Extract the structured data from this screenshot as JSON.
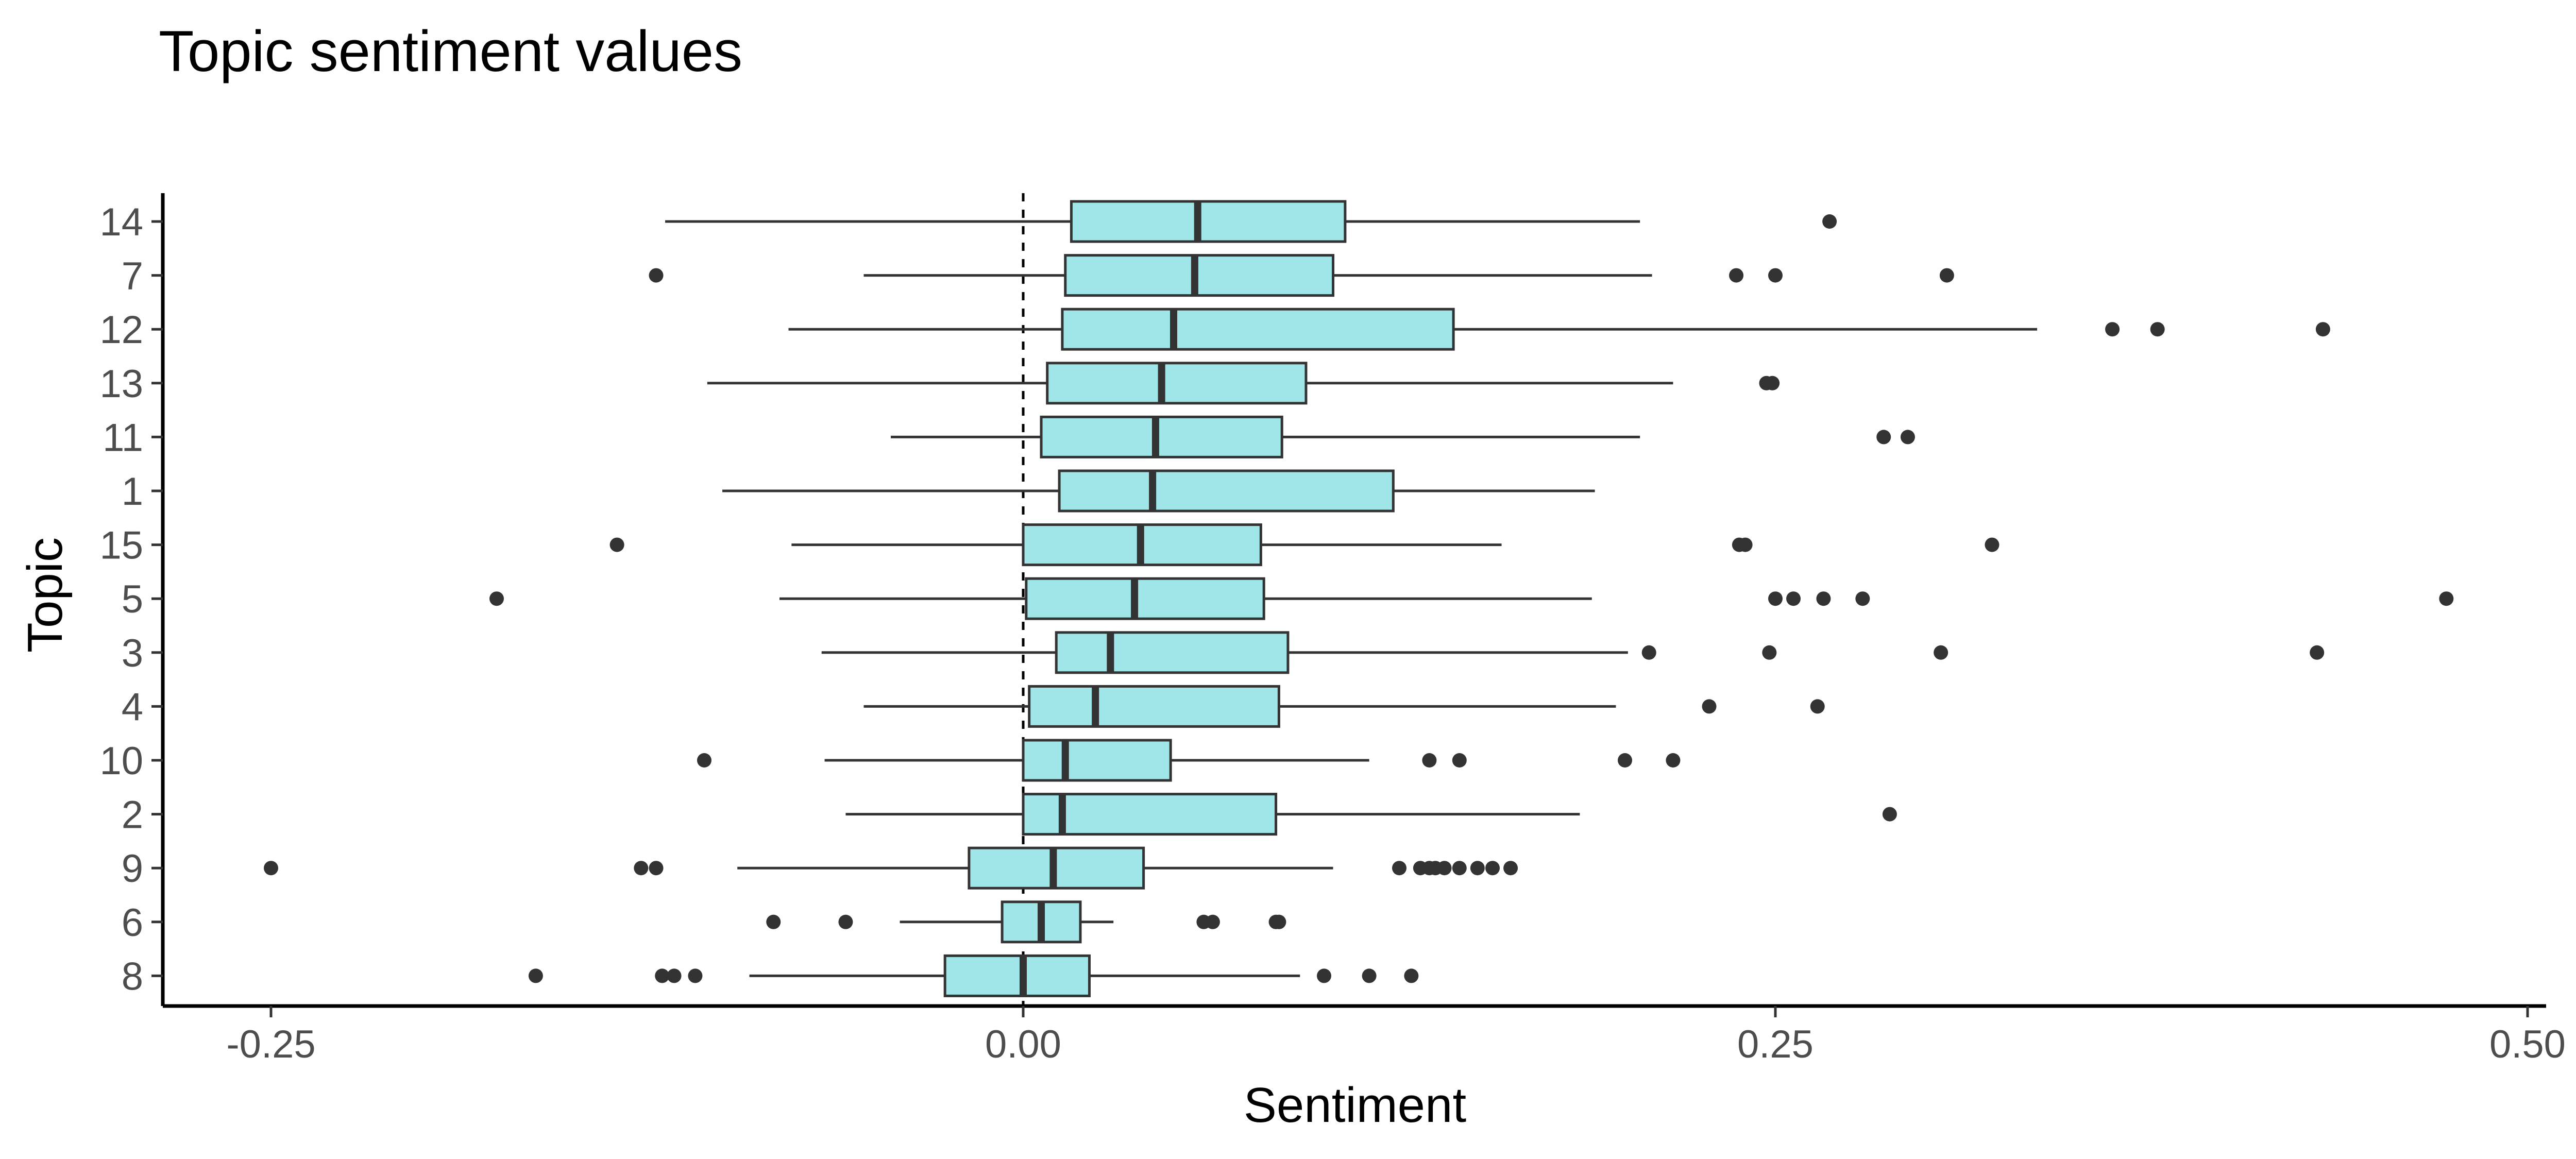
{
  "chart_data": {
    "type": "boxplot",
    "orientation": "horizontal",
    "title": "Topic sentiment values",
    "xlabel": "Sentiment",
    "ylabel": "Topic",
    "xlim": [
      -0.29,
      0.505
    ],
    "x_ticks": [
      -0.25,
      0.0,
      0.25,
      0.5
    ],
    "x_tick_labels": [
      "-0.25",
      "0.00",
      "0.25",
      "0.50"
    ],
    "reference_line": {
      "x": 0.0,
      "style": "dashed"
    },
    "grid": false,
    "legend": "none",
    "colors": {
      "box_fill": "#a0e5e8",
      "box_stroke": "#333333",
      "outlier": "#333333"
    },
    "categories": [
      "14",
      "7",
      "12",
      "13",
      "11",
      "1",
      "15",
      "5",
      "3",
      "4",
      "10",
      "2",
      "9",
      "6",
      "8"
    ],
    "boxes": [
      {
        "topic": "14",
        "whisker_low": -0.119,
        "q1": 0.016,
        "median": 0.058,
        "q3": 0.107,
        "whisker_high": 0.205,
        "outliers": [
          0.268
        ]
      },
      {
        "topic": "7",
        "whisker_low": -0.053,
        "q1": 0.014,
        "median": 0.057,
        "q3": 0.103,
        "whisker_high": 0.209,
        "outliers": [
          -0.122,
          0.237,
          0.25,
          0.307
        ]
      },
      {
        "topic": "12",
        "whisker_low": -0.078,
        "q1": 0.013,
        "median": 0.05,
        "q3": 0.143,
        "whisker_high": 0.337,
        "outliers": [
          0.362,
          0.377,
          0.432
        ]
      },
      {
        "topic": "13",
        "whisker_low": -0.105,
        "q1": 0.008,
        "median": 0.046,
        "q3": 0.094,
        "whisker_high": 0.216,
        "outliers": [
          0.247,
          0.249
        ]
      },
      {
        "topic": "11",
        "whisker_low": -0.044,
        "q1": 0.006,
        "median": 0.044,
        "q3": 0.086,
        "whisker_high": 0.205,
        "outliers": [
          0.286,
          0.294
        ]
      },
      {
        "topic": "1",
        "whisker_low": -0.1,
        "q1": 0.012,
        "median": 0.043,
        "q3": 0.123,
        "whisker_high": 0.19,
        "outliers": []
      },
      {
        "topic": "15",
        "whisker_low": -0.077,
        "q1": 0.0,
        "median": 0.039,
        "q3": 0.079,
        "whisker_high": 0.159,
        "outliers": [
          -0.135,
          0.238,
          0.24,
          0.322
        ]
      },
      {
        "topic": "5",
        "whisker_low": -0.081,
        "q1": 0.001,
        "median": 0.037,
        "q3": 0.08,
        "whisker_high": 0.189,
        "outliers": [
          -0.175,
          0.25,
          0.256,
          0.266,
          0.279,
          0.473
        ]
      },
      {
        "topic": "3",
        "whisker_low": -0.067,
        "q1": 0.011,
        "median": 0.029,
        "q3": 0.088,
        "whisker_high": 0.201,
        "outliers": [
          0.208,
          0.248,
          0.305,
          0.43
        ]
      },
      {
        "topic": "4",
        "whisker_low": -0.053,
        "q1": 0.002,
        "median": 0.024,
        "q3": 0.085,
        "whisker_high": 0.197,
        "outliers": [
          0.228,
          0.264
        ]
      },
      {
        "topic": "10",
        "whisker_low": -0.066,
        "q1": 0.0,
        "median": 0.014,
        "q3": 0.049,
        "whisker_high": 0.115,
        "outliers": [
          -0.106,
          0.135,
          0.145,
          0.2,
          0.216
        ]
      },
      {
        "topic": "2",
        "whisker_low": -0.059,
        "q1": 0.0,
        "median": 0.013,
        "q3": 0.084,
        "whisker_high": 0.185,
        "outliers": [
          0.288
        ]
      },
      {
        "topic": "9",
        "whisker_low": -0.095,
        "q1": -0.018,
        "median": 0.01,
        "q3": 0.04,
        "whisker_high": 0.103,
        "outliers": [
          -0.25,
          -0.127,
          -0.122,
          0.125,
          0.132,
          0.135,
          0.137,
          0.14,
          0.145,
          0.151,
          0.156,
          0.162
        ]
      },
      {
        "topic": "6",
        "whisker_low": -0.041,
        "q1": -0.007,
        "median": 0.006,
        "q3": 0.019,
        "whisker_high": 0.03,
        "outliers": [
          -0.083,
          -0.059,
          0.06,
          0.063,
          0.084,
          0.085
        ]
      },
      {
        "topic": "8",
        "whisker_low": -0.091,
        "q1": -0.026,
        "median": 0.0,
        "q3": 0.022,
        "whisker_high": 0.092,
        "outliers": [
          -0.162,
          -0.12,
          -0.116,
          -0.109,
          0.1,
          0.115,
          0.129
        ]
      }
    ]
  }
}
